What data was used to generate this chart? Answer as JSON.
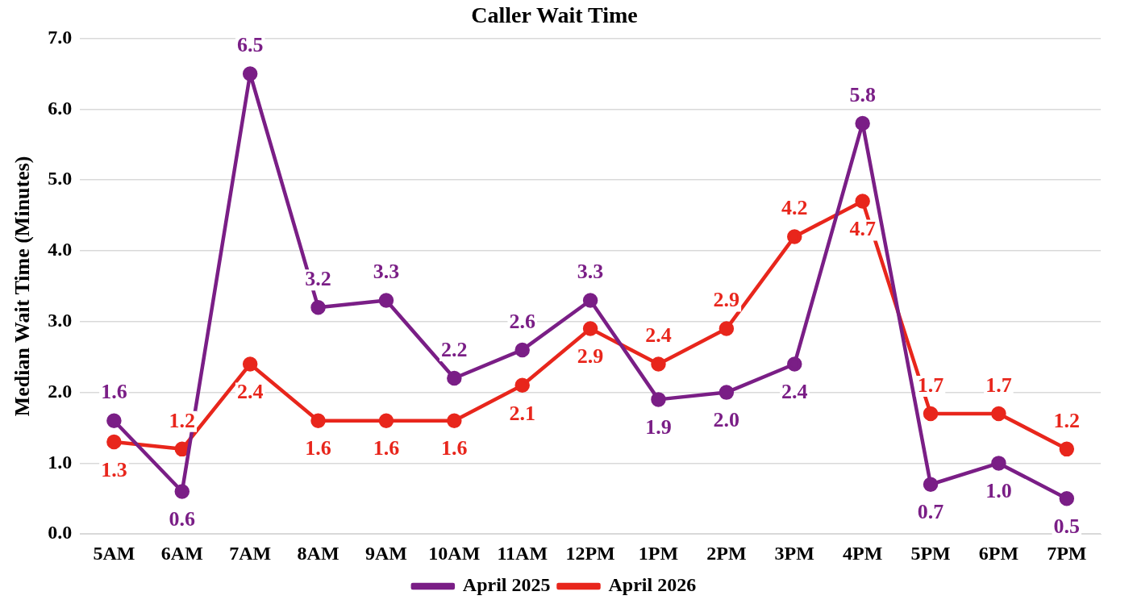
{
  "chart_data": {
    "type": "line",
    "title": "Caller Wait Time",
    "ylabel": "Median Wait Time (Minutes)",
    "categories": [
      "5AM",
      "6AM",
      "7AM",
      "8AM",
      "9AM",
      "10AM",
      "11AM",
      "12PM",
      "1PM",
      "2PM",
      "3PM",
      "4PM",
      "5PM",
      "6PM",
      "7PM"
    ],
    "series": [
      {
        "name": "April 2025",
        "color": "#7a1e86",
        "values": [
          1.6,
          0.6,
          6.5,
          3.2,
          3.3,
          2.2,
          2.6,
          3.3,
          1.9,
          2.0,
          2.4,
          5.8,
          0.7,
          1.0,
          0.5
        ],
        "value_labels": [
          "1.6",
          "0.6",
          "6.5",
          "3.2",
          "3.3",
          "2.2",
          "2.6",
          "3.3",
          "1.9",
          "2.0",
          "2.4",
          "5.8",
          "0.7",
          "1.0",
          "0.5"
        ]
      },
      {
        "name": "April 2026",
        "color": "#e8261c",
        "values": [
          1.3,
          1.2,
          2.4,
          1.6,
          1.6,
          1.6,
          2.1,
          2.9,
          2.4,
          2.9,
          4.2,
          4.7,
          1.7,
          1.7,
          1.2
        ],
        "value_labels": [
          "1.3",
          "1.2",
          "2.4",
          "1.6",
          "1.6",
          "1.6",
          "2.1",
          "2.9",
          "2.4",
          "2.9",
          "4.2",
          "4.7",
          "1.7",
          "1.7",
          "1.2"
        ]
      }
    ],
    "ylim": [
      0,
      7
    ],
    "yticks": [
      {
        "value": 0,
        "label": "0.0"
      },
      {
        "value": 1,
        "label": "1.0"
      },
      {
        "value": 2,
        "label": "2.0"
      },
      {
        "value": 3,
        "label": "3.0"
      },
      {
        "value": 4,
        "label": "4.0"
      },
      {
        "value": 5,
        "label": "5.0"
      },
      {
        "value": 6,
        "label": "6.0"
      },
      {
        "value": 7,
        "label": "7.0"
      }
    ],
    "grid": "y",
    "legend": "bottom",
    "marker": "circle",
    "line_style": "solid"
  }
}
